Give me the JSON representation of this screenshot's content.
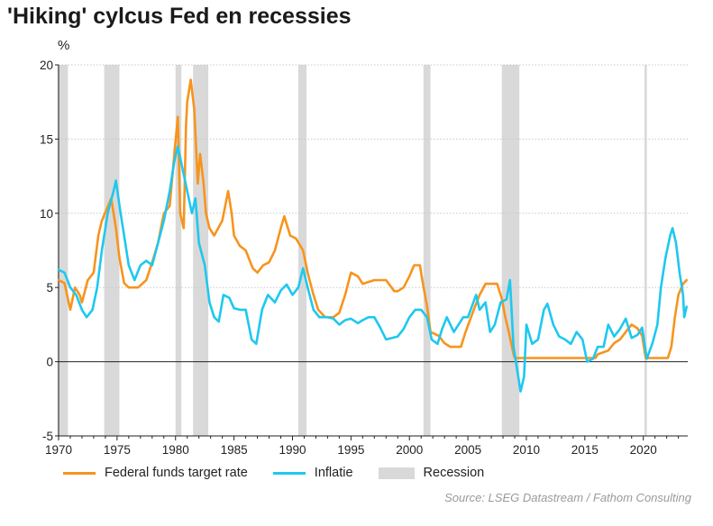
{
  "title": "'Hiking' cylcus Fed en recessies",
  "source": "Source: LSEG Datastream / Fathom Consulting",
  "colors": {
    "fed": "#f7941d",
    "inflation": "#1ec8ef",
    "recession": "#d9d9d9"
  },
  "chart_data": {
    "type": "line",
    "ylabel": "%",
    "xlim": [
      1970,
      2023.8
    ],
    "ylim": [
      -5,
      20
    ],
    "xticks": [
      1970,
      1975,
      1980,
      1985,
      1990,
      1995,
      2000,
      2005,
      2010,
      2015,
      2020
    ],
    "yticks": [
      -5,
      0,
      5,
      10,
      15,
      20
    ],
    "grid": true,
    "legend": [
      "Federal funds target rate",
      "Inflatie",
      "Recession"
    ],
    "recessions": [
      [
        1969.9,
        1970.8
      ],
      [
        1973.9,
        1975.2
      ],
      [
        1980.0,
        1980.5
      ],
      [
        1981.5,
        1982.8
      ],
      [
        1990.5,
        1991.2
      ],
      [
        2001.2,
        2001.8
      ],
      [
        2007.9,
        2009.4
      ],
      [
        2020.1,
        2020.3
      ]
    ],
    "series": [
      {
        "name": "Federal funds target rate",
        "color": "#f7941d",
        "points": [
          [
            1970.0,
            5.5
          ],
          [
            1970.5,
            5.3
          ],
          [
            1971.0,
            3.5
          ],
          [
            1971.4,
            5.0
          ],
          [
            1971.8,
            4.5
          ],
          [
            1972.0,
            4.0
          ],
          [
            1972.5,
            5.5
          ],
          [
            1973.0,
            6.0
          ],
          [
            1973.4,
            8.5
          ],
          [
            1973.7,
            9.5
          ],
          [
            1974.5,
            11.0
          ],
          [
            1974.9,
            9.0
          ],
          [
            1975.2,
            7.0
          ],
          [
            1975.6,
            5.3
          ],
          [
            1976.0,
            5.0
          ],
          [
            1976.8,
            5.0
          ],
          [
            1977.5,
            5.5
          ],
          [
            1978.0,
            6.7
          ],
          [
            1978.5,
            8.0
          ],
          [
            1979.0,
            10.0
          ],
          [
            1979.5,
            10.5
          ],
          [
            1979.9,
            14.0
          ],
          [
            1980.2,
            16.5
          ],
          [
            1980.4,
            10.0
          ],
          [
            1980.7,
            9.0
          ],
          [
            1980.9,
            16.0
          ],
          [
            1981.0,
            17.5
          ],
          [
            1981.3,
            19.0
          ],
          [
            1981.6,
            17.0
          ],
          [
            1981.9,
            12.0
          ],
          [
            1982.1,
            14.0
          ],
          [
            1982.4,
            12.0
          ],
          [
            1982.6,
            10.0
          ],
          [
            1982.9,
            9.0
          ],
          [
            1983.3,
            8.5
          ],
          [
            1984.0,
            9.5
          ],
          [
            1984.5,
            11.5
          ],
          [
            1984.8,
            10.0
          ],
          [
            1985.0,
            8.5
          ],
          [
            1985.5,
            7.8
          ],
          [
            1986.0,
            7.5
          ],
          [
            1986.6,
            6.3
          ],
          [
            1987.0,
            6.0
          ],
          [
            1987.5,
            6.5
          ],
          [
            1988.0,
            6.7
          ],
          [
            1988.5,
            7.5
          ],
          [
            1989.0,
            9.0
          ],
          [
            1989.3,
            9.8
          ],
          [
            1989.8,
            8.5
          ],
          [
            1990.3,
            8.3
          ],
          [
            1990.9,
            7.5
          ],
          [
            1991.3,
            6.0
          ],
          [
            1991.8,
            4.5
          ],
          [
            1992.2,
            3.5
          ],
          [
            1992.8,
            3.0
          ],
          [
            1993.5,
            3.0
          ],
          [
            1994.0,
            3.3
          ],
          [
            1994.5,
            4.5
          ],
          [
            1995.0,
            6.0
          ],
          [
            1995.6,
            5.75
          ],
          [
            1996.0,
            5.25
          ],
          [
            1997.0,
            5.5
          ],
          [
            1998.0,
            5.5
          ],
          [
            1998.7,
            4.75
          ],
          [
            1999.0,
            4.75
          ],
          [
            1999.5,
            5.0
          ],
          [
            2000.0,
            5.75
          ],
          [
            2000.4,
            6.5
          ],
          [
            2000.9,
            6.5
          ],
          [
            2001.1,
            5.5
          ],
          [
            2001.5,
            3.75
          ],
          [
            2001.8,
            2.0
          ],
          [
            2002.5,
            1.75
          ],
          [
            2003.0,
            1.25
          ],
          [
            2003.5,
            1.0
          ],
          [
            2004.4,
            1.0
          ],
          [
            2004.8,
            2.0
          ],
          [
            2005.5,
            3.5
          ],
          [
            2006.0,
            4.5
          ],
          [
            2006.5,
            5.25
          ],
          [
            2007.5,
            5.25
          ],
          [
            2007.9,
            4.25
          ],
          [
            2008.2,
            3.0
          ],
          [
            2008.5,
            2.0
          ],
          [
            2008.9,
            0.5
          ],
          [
            2009.0,
            0.25
          ],
          [
            2015.9,
            0.25
          ],
          [
            2016.1,
            0.5
          ],
          [
            2017.0,
            0.75
          ],
          [
            2017.5,
            1.25
          ],
          [
            2018.0,
            1.5
          ],
          [
            2018.5,
            2.0
          ],
          [
            2019.0,
            2.5
          ],
          [
            2019.5,
            2.25
          ],
          [
            2019.9,
            1.75
          ],
          [
            2020.2,
            0.25
          ],
          [
            2022.1,
            0.25
          ],
          [
            2022.4,
            1.0
          ],
          [
            2022.7,
            3.0
          ],
          [
            2023.0,
            4.5
          ],
          [
            2023.4,
            5.25
          ],
          [
            2023.7,
            5.5
          ]
        ]
      },
      {
        "name": "Inflatie",
        "color": "#1ec8ef",
        "points": [
          [
            1970.0,
            6.2
          ],
          [
            1970.5,
            6.0
          ],
          [
            1971.0,
            5.0
          ],
          [
            1971.5,
            4.5
          ],
          [
            1972.0,
            3.5
          ],
          [
            1972.4,
            3.0
          ],
          [
            1972.9,
            3.5
          ],
          [
            1973.3,
            5.0
          ],
          [
            1973.7,
            7.5
          ],
          [
            1974.2,
            10.0
          ],
          [
            1974.7,
            11.5
          ],
          [
            1974.9,
            12.2
          ],
          [
            1975.3,
            10.0
          ],
          [
            1975.6,
            8.5
          ],
          [
            1976.0,
            6.5
          ],
          [
            1976.5,
            5.5
          ],
          [
            1977.0,
            6.5
          ],
          [
            1977.5,
            6.8
          ],
          [
            1978.0,
            6.5
          ],
          [
            1978.5,
            8.0
          ],
          [
            1979.0,
            9.5
          ],
          [
            1979.5,
            11.5
          ],
          [
            1979.9,
            13.5
          ],
          [
            1980.2,
            14.5
          ],
          [
            1980.6,
            13.0
          ],
          [
            1981.0,
            11.5
          ],
          [
            1981.4,
            10.0
          ],
          [
            1981.7,
            11.0
          ],
          [
            1982.0,
            8.0
          ],
          [
            1982.5,
            6.5
          ],
          [
            1982.9,
            4.0
          ],
          [
            1983.3,
            3.0
          ],
          [
            1983.7,
            2.7
          ],
          [
            1984.1,
            4.5
          ],
          [
            1984.6,
            4.3
          ],
          [
            1985.0,
            3.6
          ],
          [
            1985.5,
            3.5
          ],
          [
            1986.0,
            3.5
          ],
          [
            1986.5,
            1.5
          ],
          [
            1986.9,
            1.2
          ],
          [
            1987.4,
            3.5
          ],
          [
            1987.9,
            4.5
          ],
          [
            1988.5,
            4.0
          ],
          [
            1989.0,
            4.8
          ],
          [
            1989.5,
            5.2
          ],
          [
            1990.0,
            4.5
          ],
          [
            1990.5,
            5.0
          ],
          [
            1990.9,
            6.3
          ],
          [
            1991.3,
            5.0
          ],
          [
            1991.8,
            3.5
          ],
          [
            1992.3,
            3.0
          ],
          [
            1993.0,
            3.0
          ],
          [
            1993.5,
            2.9
          ],
          [
            1994.0,
            2.5
          ],
          [
            1994.5,
            2.8
          ],
          [
            1995.0,
            2.9
          ],
          [
            1995.6,
            2.6
          ],
          [
            1996.0,
            2.8
          ],
          [
            1996.5,
            3.0
          ],
          [
            1997.0,
            3.0
          ],
          [
            1997.5,
            2.3
          ],
          [
            1998.0,
            1.5
          ],
          [
            1998.5,
            1.6
          ],
          [
            1999.0,
            1.7
          ],
          [
            1999.5,
            2.2
          ],
          [
            2000.0,
            3.0
          ],
          [
            2000.5,
            3.5
          ],
          [
            2001.0,
            3.5
          ],
          [
            2001.5,
            3.0
          ],
          [
            2001.9,
            1.5
          ],
          [
            2002.4,
            1.2
          ],
          [
            2002.8,
            2.2
          ],
          [
            2003.2,
            3.0
          ],
          [
            2003.8,
            2.0
          ],
          [
            2004.2,
            2.5
          ],
          [
            2004.6,
            3.0
          ],
          [
            2005.0,
            3.0
          ],
          [
            2005.7,
            4.5
          ],
          [
            2006.0,
            3.5
          ],
          [
            2006.5,
            4.0
          ],
          [
            2006.9,
            2.0
          ],
          [
            2007.3,
            2.5
          ],
          [
            2007.8,
            4.0
          ],
          [
            2008.3,
            4.2
          ],
          [
            2008.6,
            5.5
          ],
          [
            2008.9,
            1.0
          ],
          [
            2009.2,
            -0.5
          ],
          [
            2009.5,
            -2.0
          ],
          [
            2009.8,
            -1.0
          ],
          [
            2010.0,
            2.5
          ],
          [
            2010.5,
            1.2
          ],
          [
            2011.0,
            1.5
          ],
          [
            2011.5,
            3.5
          ],
          [
            2011.8,
            3.9
          ],
          [
            2012.3,
            2.5
          ],
          [
            2012.8,
            1.7
          ],
          [
            2013.3,
            1.5
          ],
          [
            2013.8,
            1.2
          ],
          [
            2014.3,
            2.0
          ],
          [
            2014.8,
            1.5
          ],
          [
            2015.2,
            0.0
          ],
          [
            2015.7,
            0.2
          ],
          [
            2016.1,
            1.0
          ],
          [
            2016.6,
            1.0
          ],
          [
            2017.0,
            2.5
          ],
          [
            2017.5,
            1.7
          ],
          [
            2018.0,
            2.2
          ],
          [
            2018.5,
            2.9
          ],
          [
            2019.0,
            1.6
          ],
          [
            2019.5,
            1.8
          ],
          [
            2019.9,
            2.3
          ],
          [
            2020.3,
            0.2
          ],
          [
            2020.8,
            1.3
          ],
          [
            2021.2,
            2.5
          ],
          [
            2021.5,
            5.0
          ],
          [
            2021.9,
            7.0
          ],
          [
            2022.3,
            8.5
          ],
          [
            2022.5,
            9.0
          ],
          [
            2022.8,
            8.0
          ],
          [
            2023.1,
            6.0
          ],
          [
            2023.4,
            4.5
          ],
          [
            2023.5,
            3.0
          ],
          [
            2023.7,
            3.7
          ]
        ]
      }
    ]
  }
}
